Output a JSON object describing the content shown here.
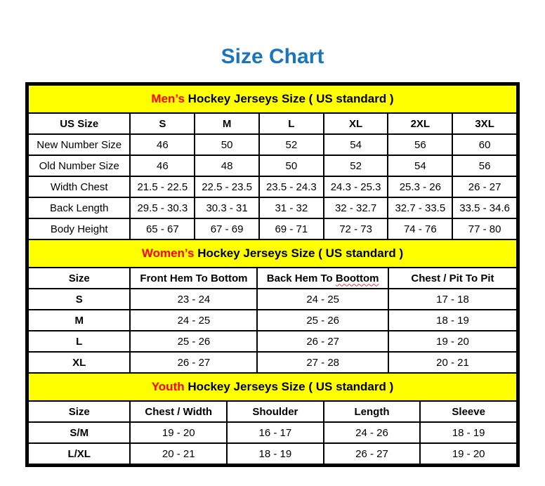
{
  "title": "Size Chart",
  "colors": {
    "title_blue": "#1b75bc",
    "band_yellow": "#ffff00",
    "highlight_red": "#ff0000"
  },
  "sections": [
    {
      "name": "mens",
      "title_highlight": "Men’s",
      "title_rest": " Hockey Jerseys Size ( US standard )",
      "columns": [
        "US Size",
        "S",
        "M",
        "L",
        "XL",
        "2XL",
        "3XL"
      ],
      "rows": [
        {
          "label": "New Number Size",
          "bold_label": false,
          "values": [
            "46",
            "50",
            "52",
            "54",
            "56",
            "60"
          ]
        },
        {
          "label": "Old Number Size",
          "bold_label": false,
          "values": [
            "46",
            "48",
            "50",
            "52",
            "54",
            "56"
          ]
        },
        {
          "label": "Width Chest",
          "bold_label": false,
          "values": [
            "21.5 - 22.5",
            "22.5 - 23.5",
            "23.5 - 24.3",
            "24.3 - 25.3",
            "25.3 - 26",
            "26 - 27"
          ]
        },
        {
          "label": "Back Length",
          "bold_label": false,
          "values": [
            "29.5 - 30.3",
            "30.3 - 31",
            "31 - 32",
            "32 - 32.7",
            "32.7 - 33.5",
            "33.5 - 34.6"
          ]
        },
        {
          "label": "Body Height",
          "bold_label": false,
          "values": [
            "65 - 67",
            "67 - 69",
            "69 - 71",
            "72 - 73",
            "74 - 76",
            "77 - 80"
          ]
        }
      ]
    },
    {
      "name": "womens",
      "title_highlight": "Women’s",
      "title_rest": " Hockey Jerseys Size ( US standard )",
      "columns": [
        "Size",
        "Front Hem To Bottom",
        {
          "text": "Back Hem To ",
          "misspelled": "Boottom"
        },
        "Chest / Pit To Pit"
      ],
      "rows": [
        {
          "label": "S",
          "bold_label": true,
          "values": [
            "23 - 24",
            "24 - 25",
            "17 - 18"
          ]
        },
        {
          "label": "M",
          "bold_label": true,
          "values": [
            "24 - 25",
            "25 - 26",
            "18 - 19"
          ]
        },
        {
          "label": "L",
          "bold_label": true,
          "values": [
            "25 - 26",
            "26 - 27",
            "19 - 20"
          ]
        },
        {
          "label": "XL",
          "bold_label": true,
          "values": [
            "26 - 27",
            "27 - 28",
            "20 - 21"
          ]
        }
      ]
    },
    {
      "name": "youth",
      "title_highlight": "Youth",
      "title_rest": " Hockey Jerseys Size ( US standard )",
      "columns": [
        "Size",
        "Chest / Width",
        "Shoulder",
        "Length",
        "Sleeve"
      ],
      "rows": [
        {
          "label": "S/M",
          "bold_label": true,
          "values": [
            "19 - 20",
            "16 - 17",
            "24 - 26",
            "18 - 19"
          ]
        },
        {
          "label": "L/XL",
          "bold_label": true,
          "values": [
            "20 - 21",
            "18 - 19",
            "26 - 27",
            "19 - 20"
          ]
        }
      ]
    }
  ]
}
